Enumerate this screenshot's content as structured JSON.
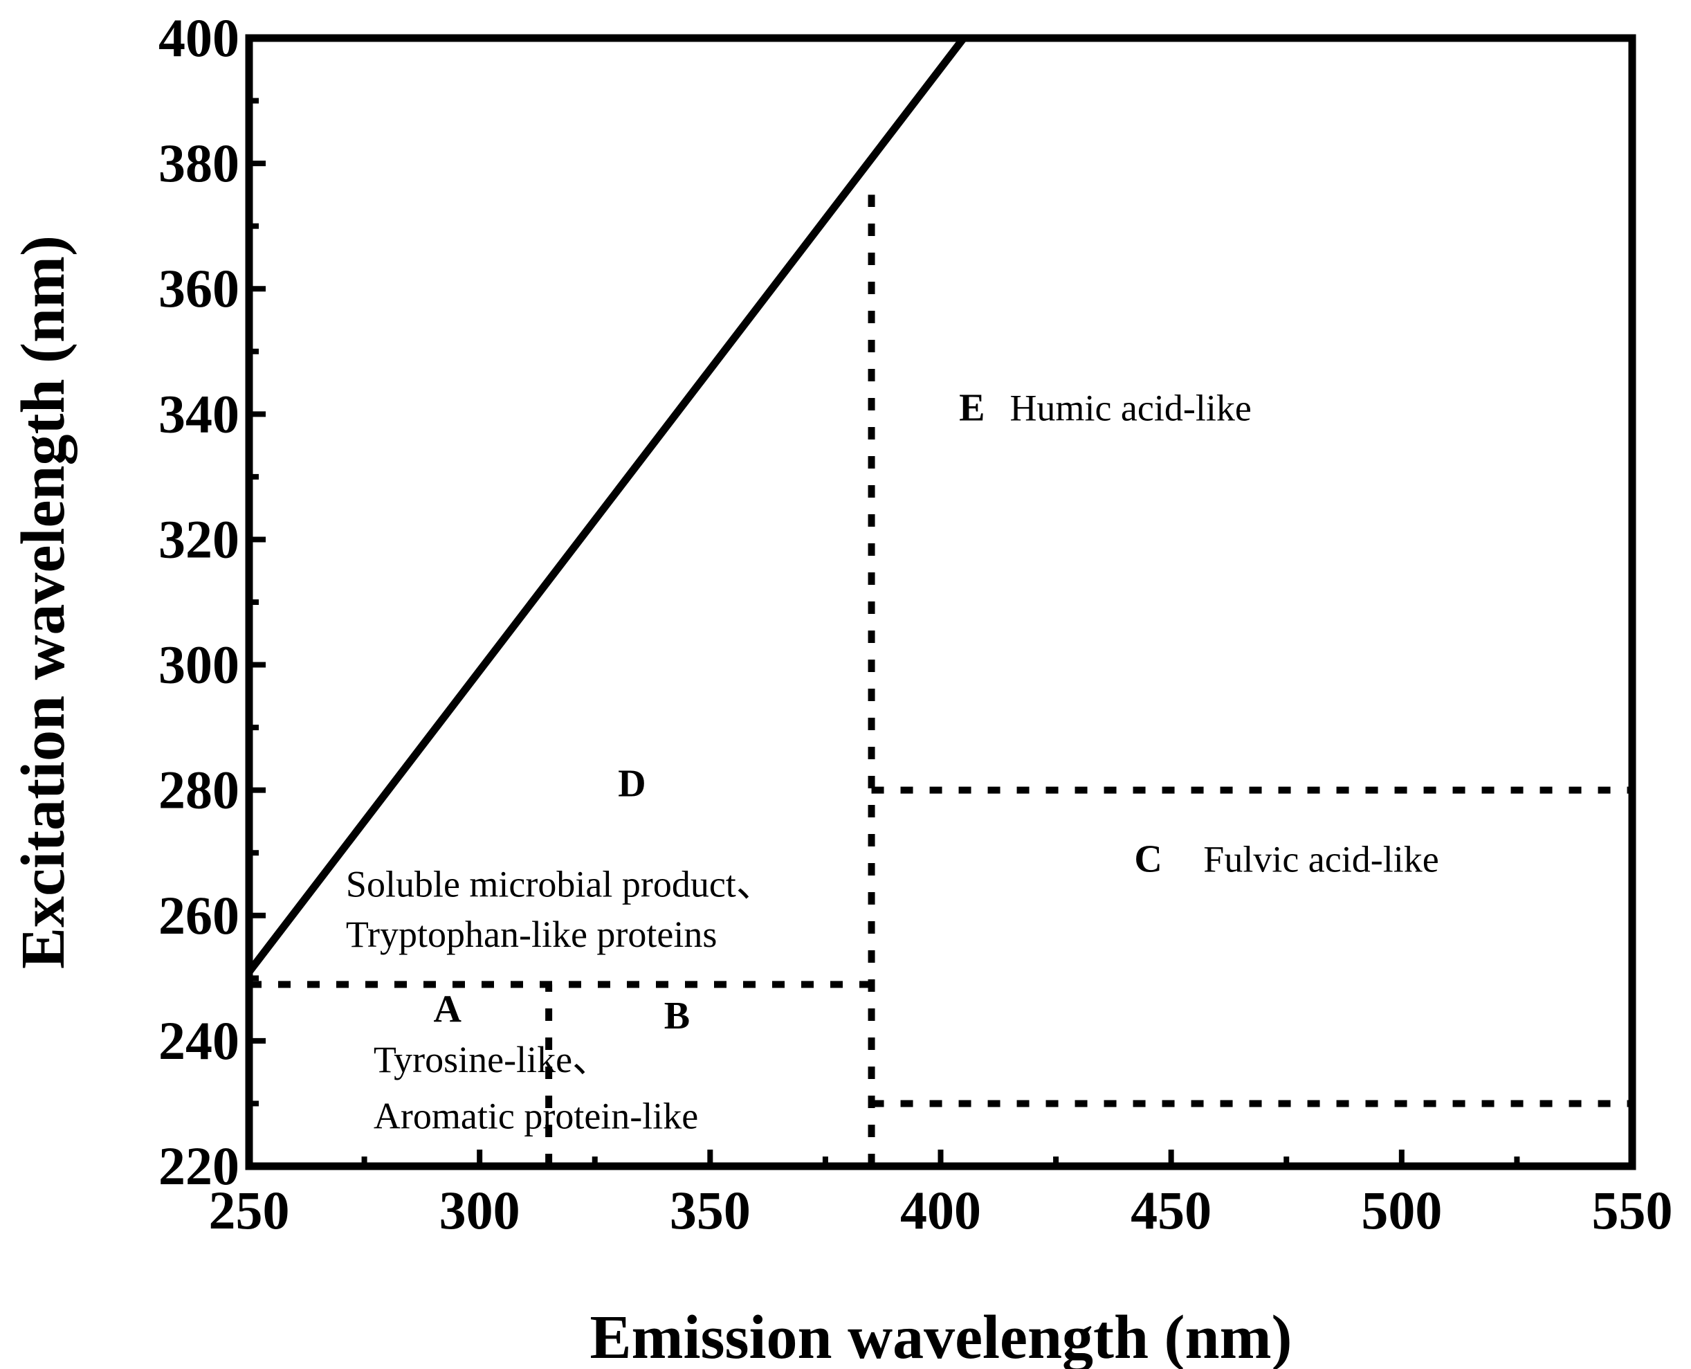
{
  "chart_data": {
    "type": "scatter",
    "title": "",
    "xlabel": "Emission wavelength (nm)",
    "ylabel": "Excitation wavelength (nm)",
    "xlim": [
      250,
      550
    ],
    "ylim": [
      220,
      400
    ],
    "xticks": [
      "250",
      "300",
      "350",
      "400",
      "450",
      "500",
      "550"
    ],
    "yticks": [
      "220",
      "240",
      "260",
      "280",
      "300",
      "320",
      "340",
      "360",
      "380",
      "400"
    ],
    "diagonal_line": [
      [
        250,
        251
      ],
      [
        405,
        400
      ]
    ],
    "boundaries": [
      {
        "name": "ex-250",
        "orientation": "horizontal",
        "at": 249,
        "from": 250,
        "to": 385
      },
      {
        "name": "em-315",
        "orientation": "vertical",
        "at": 315,
        "from": 220,
        "to": 249
      },
      {
        "name": "em-385",
        "orientation": "vertical",
        "at": 385,
        "from": 220,
        "to": 375
      },
      {
        "name": "ex-280",
        "orientation": "horizontal",
        "at": 280,
        "from": 385,
        "to": 550
      },
      {
        "name": "ex-230",
        "orientation": "horizontal",
        "at": 230,
        "from": 385,
        "to": 550
      }
    ],
    "regions": [
      {
        "letter": "A",
        "letter_at": [
          290,
          243
        ]
      },
      {
        "letter": "B",
        "letter_at": [
          340,
          242
        ]
      },
      {
        "letter": "D",
        "letter_at": [
          330,
          279
        ]
      },
      {
        "letter": "E",
        "letter_at": [
          404,
          339
        ]
      },
      {
        "letter": "C",
        "letter_at": [
          442,
          267
        ]
      }
    ],
    "annotations": [
      {
        "text": "Tyrosine-like、",
        "at": [
          277,
          235
        ]
      },
      {
        "text": "Aromatic protein-like",
        "at": [
          277,
          226
        ]
      },
      {
        "text": "Soluble microbial product、",
        "at": [
          271,
          263
        ]
      },
      {
        "text": "Tryptophan-like proteins",
        "at": [
          271,
          255
        ]
      },
      {
        "text": "Humic acid-like",
        "at": [
          415,
          339
        ]
      },
      {
        "text": "Fulvic acid-like",
        "at": [
          457,
          267
        ]
      }
    ]
  }
}
